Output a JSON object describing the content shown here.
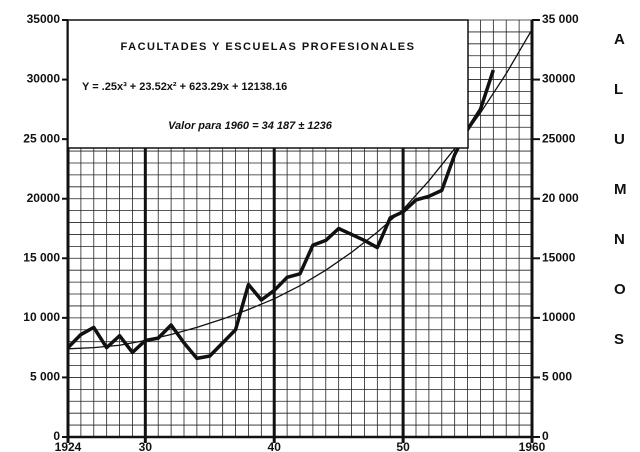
{
  "chart_data": {
    "type": "line",
    "title": "FACULTADES Y ESCUELAS PROFESIONALES",
    "subtitle": "Y = .25x³ + 23.52x² + 623.29x + 12138.16",
    "annotation": "Valor para 1960 = 34 187 ± 1236",
    "y2_label": "ALUMNOS",
    "xlim": [
      1924,
      1960
    ],
    "xticks": [
      {
        "value": 1924,
        "label": "1924"
      },
      {
        "value": 1930,
        "label": "30"
      },
      {
        "value": 1940,
        "label": "40"
      },
      {
        "value": 1950,
        "label": "50"
      },
      {
        "value": 1960,
        "label": "1960"
      }
    ],
    "ylim": [
      0,
      35000
    ],
    "yticks": [
      0,
      {
        "value": 5000,
        "label": "5 000"
      },
      {
        "value": 10000,
        "label": "10 000"
      },
      {
        "value": 15000,
        "label": "15 000"
      },
      {
        "value": 20000,
        "label": "20000"
      },
      {
        "value": 25000,
        "label": "25 000"
      },
      30000,
      35000
    ],
    "y2lim": [
      0,
      35000
    ],
    "y2ticks": [
      0,
      {
        "value": 5000,
        "label": "5 000"
      },
      10000,
      15000,
      {
        "value": 20000,
        "label": "20 000"
      },
      25000,
      30000,
      {
        "value": 35000,
        "label": "35 000"
      }
    ],
    "grid": true,
    "series": [
      {
        "color": "#111",
        "width": 3.5,
        "x": [
          1924,
          1925,
          1926,
          1927,
          1928,
          1929,
          1930,
          1931,
          1932,
          1933,
          1934,
          1935,
          1936,
          1937,
          1938,
          1939,
          1940,
          1941,
          1942,
          1943,
          1944,
          1945,
          1946,
          1947,
          1948,
          1949,
          1950,
          1951,
          1952,
          1953,
          1954,
          1955,
          1956,
          1957
        ],
        "values": [
          7500,
          8600,
          9200,
          7500,
          8500,
          7100,
          8100,
          8300,
          9400,
          7900,
          6600,
          6800,
          7900,
          9000,
          12800,
          11500,
          12300,
          13400,
          13700,
          16100,
          16500,
          17500,
          17000,
          16500,
          15900,
          18400,
          18900,
          19900,
          20200,
          20700,
          23700,
          25800,
          27500,
          30800
        ]
      },
      {
        "color": "#111",
        "width": 1.3,
        "x": [
          1924,
          1926,
          1928,
          1930,
          1932,
          1934,
          1936,
          1938,
          1940,
          1942,
          1944,
          1946,
          1948,
          1950,
          1952,
          1954,
          1956,
          1958,
          1960
        ],
        "values": [
          7400,
          7500,
          7700,
          8100,
          8600,
          9200,
          9900,
          10700,
          11600,
          12700,
          14000,
          15500,
          17200,
          19100,
          21500,
          24200,
          27200,
          30500,
          34200
        ]
      }
    ]
  }
}
